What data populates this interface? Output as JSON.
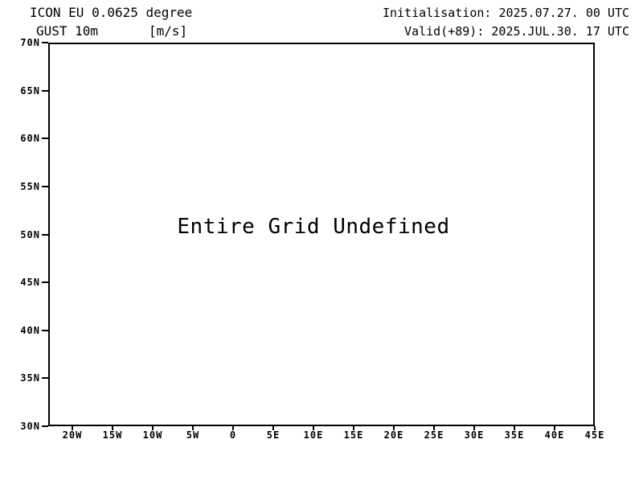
{
  "header": {
    "model_line": "ICON EU 0.0625 degree",
    "variable_line": "GUST 10m",
    "units_label": "[m/s]",
    "init_line": "Initialisation: 2025.07.27. 00 UTC",
    "valid_line": "Valid(+89): 2025.JUL.30. 17 UTC"
  },
  "colors": {
    "foreground": "#000000",
    "background": "#ffffff"
  },
  "chart_data": {
    "type": "heatmap",
    "title": "ICON EU 0.0625 degree GUST 10m [m/s]",
    "annotation": "Entire Grid Undefined",
    "grid": false,
    "legend": "none",
    "values": [],
    "x_axis": {
      "min": -23,
      "max": 45,
      "ticks": [
        {
          "value": -20,
          "label": "20W"
        },
        {
          "value": -15,
          "label": "15W"
        },
        {
          "value": -10,
          "label": "10W"
        },
        {
          "value": -5,
          "label": "5W"
        },
        {
          "value": 0,
          "label": "0"
        },
        {
          "value": 5,
          "label": "5E"
        },
        {
          "value": 10,
          "label": "10E"
        },
        {
          "value": 15,
          "label": "15E"
        },
        {
          "value": 20,
          "label": "20E"
        },
        {
          "value": 25,
          "label": "25E"
        },
        {
          "value": 30,
          "label": "30E"
        },
        {
          "value": 35,
          "label": "35E"
        },
        {
          "value": 40,
          "label": "40E"
        },
        {
          "value": 45,
          "label": "45E"
        }
      ]
    },
    "y_axis": {
      "min": 30,
      "max": 70,
      "ticks": [
        {
          "value": 70,
          "label": "70N"
        },
        {
          "value": 65,
          "label": "65N"
        },
        {
          "value": 60,
          "label": "60N"
        },
        {
          "value": 55,
          "label": "55N"
        },
        {
          "value": 50,
          "label": "50N"
        },
        {
          "value": 45,
          "label": "45N"
        },
        {
          "value": 40,
          "label": "40N"
        },
        {
          "value": 35,
          "label": "35N"
        },
        {
          "value": 30,
          "label": "30N"
        }
      ]
    }
  }
}
